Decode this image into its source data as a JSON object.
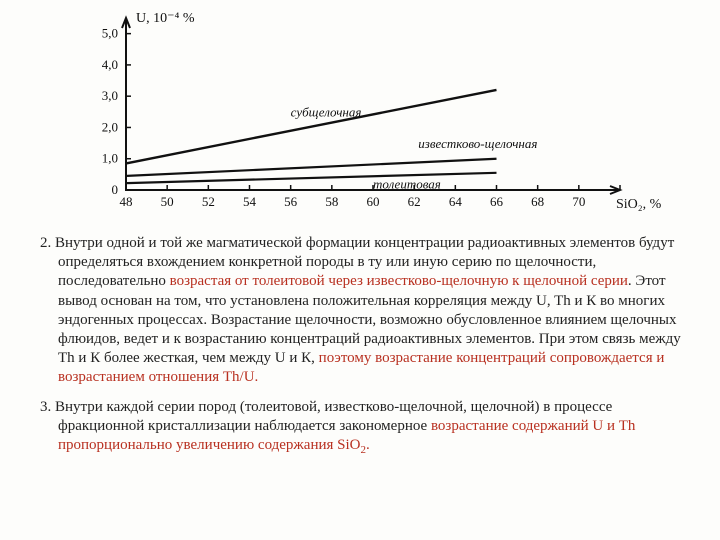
{
  "chart": {
    "type": "line",
    "x_axis": {
      "title": "SiO₂, %",
      "lim": [
        48,
        72
      ],
      "ticks": [
        48,
        50,
        52,
        54,
        56,
        58,
        60,
        62,
        64,
        66,
        68,
        70,
        72
      ],
      "labelled": [
        48,
        50,
        52,
        54,
        56,
        58,
        60,
        62,
        64,
        66,
        68,
        70
      ]
    },
    "y_axis": {
      "title": "U, 10⁻⁴ %",
      "lim": [
        0,
        5.5
      ],
      "ticks": [
        0,
        1.0,
        2.0,
        3.0,
        4.0,
        5.0
      ],
      "labels": [
        "0",
        "1,0",
        "2,0",
        "3,0",
        "4,0",
        "5,0"
      ]
    },
    "series": [
      {
        "name": "субщелочная",
        "x": [
          48,
          66
        ],
        "y": [
          0.85,
          3.2
        ],
        "label_x": 56,
        "label_y": 2.35,
        "stroke_width": 2.4
      },
      {
        "name": "известково-щелочная",
        "x": [
          48,
          66
        ],
        "y": [
          0.45,
          1.0
        ],
        "label_x": 62.2,
        "label_y": 1.35,
        "stroke_width": 2.2
      },
      {
        "name": "толеитовая",
        "x": [
          48,
          66
        ],
        "y": [
          0.22,
          0.55
        ],
        "label_x": 60,
        "label_y": 0.05,
        "stroke_width": 2.2
      }
    ],
    "plot": {
      "bg": "#fdfdfb",
      "axis_color": "#111",
      "text_color": "#111"
    }
  },
  "paragraphs": {
    "p2_a": "2. Внутри одной и той же магматической формации концентрации радиоактивных элементов будут определяться вхождением конкретной породы в ту или иную серию по щелочности, последовательно ",
    "p2_b_red": "возрастая от толеитовой через известково-щелочную к щелочной серии",
    "p2_c": ". Этот вывод основан на том, что установлена положительная корреляция между U, Th и К во многих эндогенных процессах. Возрастание щелочности, возможно обусловленное влиянием щелочных флюидов, ведет и к возрастанию концентраций радиоактивных элементов. При этом связь между Th и К более жесткая, чем между U и К, ",
    "p2_d_red": "поэтому возрастание концентраций сопровождается и возрастанием отношения Th/U.",
    "p3_a": "3. Внутри каждой серии пород (толеитовой, известково-щелочной, щелочной) в процессе фракционной кристаллизации наблюдается закономерное ",
    "p3_b_red": "возрастание содержаний U и Th пропорционально увеличению содержания SiO",
    "p3_c_red_sub": "2",
    "p3_d_red": "."
  },
  "colors": {
    "text": "#222222",
    "emph": "#b83020",
    "bg": "#fdfdfb"
  }
}
